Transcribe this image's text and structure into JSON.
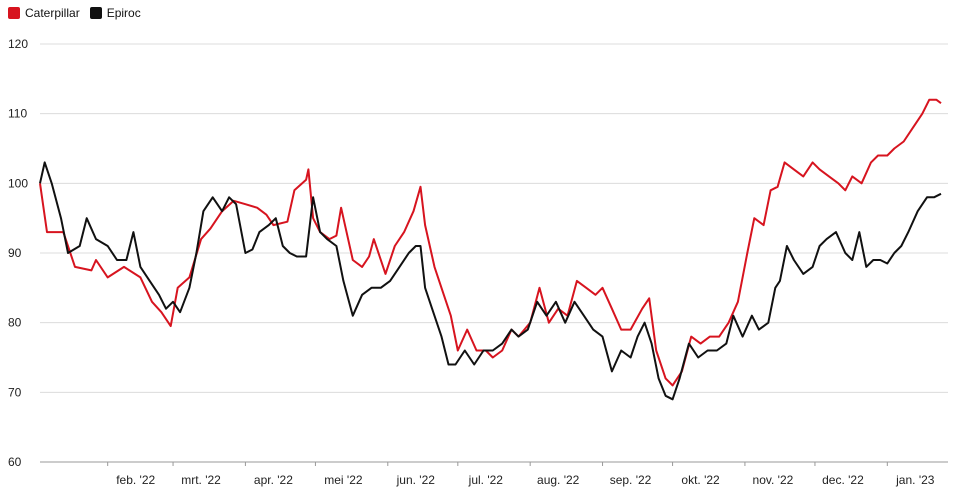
{
  "legend": {
    "items": [
      {
        "label": "Caterpillar",
        "color": "#d7141f"
      },
      {
        "label": "Epiroc",
        "color": "#111111"
      }
    ]
  },
  "chart_data": {
    "type": "line",
    "xlabel": "",
    "ylabel": "",
    "ylim": [
      60,
      120
    ],
    "yticks": [
      60,
      70,
      80,
      90,
      100,
      110,
      120
    ],
    "grid": true,
    "legend_position": "top-left",
    "x_ticks": [
      {
        "label": "feb. '22",
        "date": "2022-02-01"
      },
      {
        "label": "mrt. '22",
        "date": "2022-03-01"
      },
      {
        "label": "apr. '22",
        "date": "2022-04-01"
      },
      {
        "label": "mei '22",
        "date": "2022-05-01"
      },
      {
        "label": "jun. '22",
        "date": "2022-06-01"
      },
      {
        "label": "jul. '22",
        "date": "2022-07-01"
      },
      {
        "label": "aug. '22",
        "date": "2022-08-01"
      },
      {
        "label": "sep. '22",
        "date": "2022-09-01"
      },
      {
        "label": "okt. '22",
        "date": "2022-10-01"
      },
      {
        "label": "nov. '22",
        "date": "2022-11-01"
      },
      {
        "label": "dec. '22",
        "date": "2022-12-01"
      },
      {
        "label": "jan. '23",
        "date": "2023-01-01"
      }
    ],
    "xlim": [
      "2022-01-03",
      "2023-01-27"
    ],
    "series": [
      {
        "name": "Caterpillar",
        "color": "#d7141f",
        "points": [
          [
            "2022-01-03",
            100
          ],
          [
            "2022-01-06",
            93
          ],
          [
            "2022-01-13",
            93
          ],
          [
            "2022-01-18",
            88
          ],
          [
            "2022-01-25",
            87.5
          ],
          [
            "2022-01-27",
            89
          ],
          [
            "2022-02-01",
            86.5
          ],
          [
            "2022-02-08",
            88
          ],
          [
            "2022-02-15",
            86.5
          ],
          [
            "2022-02-20",
            83
          ],
          [
            "2022-02-24",
            81.5
          ],
          [
            "2022-02-28",
            79.5
          ],
          [
            "2022-03-03",
            85
          ],
          [
            "2022-03-08",
            86.5
          ],
          [
            "2022-03-13",
            92
          ],
          [
            "2022-03-17",
            93.5
          ],
          [
            "2022-03-22",
            96
          ],
          [
            "2022-03-27",
            97.5
          ],
          [
            "2022-04-01",
            97
          ],
          [
            "2022-04-06",
            96.5
          ],
          [
            "2022-04-10",
            95.5
          ],
          [
            "2022-04-13",
            94
          ],
          [
            "2022-04-19",
            94.5
          ],
          [
            "2022-04-22",
            99
          ],
          [
            "2022-04-27",
            100.5
          ],
          [
            "2022-04-28",
            102
          ],
          [
            "2022-04-30",
            95
          ],
          [
            "2022-05-03",
            93
          ],
          [
            "2022-05-07",
            92
          ],
          [
            "2022-05-10",
            92.5
          ],
          [
            "2022-05-12",
            96.5
          ],
          [
            "2022-05-17",
            89
          ],
          [
            "2022-05-21",
            88
          ],
          [
            "2022-05-24",
            89.5
          ],
          [
            "2022-05-26",
            92
          ],
          [
            "2022-05-31",
            87
          ],
          [
            "2022-06-04",
            91
          ],
          [
            "2022-06-08",
            93
          ],
          [
            "2022-06-12",
            96
          ],
          [
            "2022-06-15",
            99.5
          ],
          [
            "2022-06-17",
            94
          ],
          [
            "2022-06-21",
            88
          ],
          [
            "2022-06-25",
            84
          ],
          [
            "2022-06-28",
            81
          ],
          [
            "2022-07-01",
            76
          ],
          [
            "2022-07-05",
            79
          ],
          [
            "2022-07-09",
            76
          ],
          [
            "2022-07-13",
            76
          ],
          [
            "2022-07-16",
            75
          ],
          [
            "2022-07-20",
            76
          ],
          [
            "2022-07-24",
            79
          ],
          [
            "2022-07-27",
            78
          ],
          [
            "2022-08-01",
            80
          ],
          [
            "2022-08-05",
            85
          ],
          [
            "2022-08-09",
            80
          ],
          [
            "2022-08-13",
            82
          ],
          [
            "2022-08-17",
            81
          ],
          [
            "2022-08-21",
            86
          ],
          [
            "2022-08-25",
            85
          ],
          [
            "2022-08-29",
            84
          ],
          [
            "2022-09-01",
            85
          ],
          [
            "2022-09-05",
            82
          ],
          [
            "2022-09-09",
            79
          ],
          [
            "2022-09-13",
            79
          ],
          [
            "2022-09-18",
            82
          ],
          [
            "2022-09-21",
            83.5
          ],
          [
            "2022-09-24",
            76
          ],
          [
            "2022-09-28",
            72
          ],
          [
            "2022-10-01",
            71
          ],
          [
            "2022-10-05",
            73
          ],
          [
            "2022-10-09",
            78
          ],
          [
            "2022-10-13",
            77
          ],
          [
            "2022-10-17",
            78
          ],
          [
            "2022-10-21",
            78
          ],
          [
            "2022-10-25",
            80
          ],
          [
            "2022-10-29",
            83
          ],
          [
            "2022-11-02",
            90
          ],
          [
            "2022-11-05",
            95
          ],
          [
            "2022-11-09",
            94
          ],
          [
            "2022-11-12",
            99
          ],
          [
            "2022-11-15",
            99.5
          ],
          [
            "2022-11-18",
            103
          ],
          [
            "2022-11-22",
            102
          ],
          [
            "2022-11-26",
            101
          ],
          [
            "2022-11-30",
            103
          ],
          [
            "2022-12-03",
            102
          ],
          [
            "2022-12-07",
            101
          ],
          [
            "2022-12-11",
            100
          ],
          [
            "2022-12-14",
            99
          ],
          [
            "2022-12-17",
            101
          ],
          [
            "2022-12-21",
            100
          ],
          [
            "2022-12-25",
            103
          ],
          [
            "2022-12-28",
            104
          ],
          [
            "2023-01-01",
            104
          ],
          [
            "2023-01-04",
            105
          ],
          [
            "2023-01-08",
            106
          ],
          [
            "2023-01-12",
            108
          ],
          [
            "2023-01-16",
            110
          ],
          [
            "2023-01-19",
            112
          ],
          [
            "2023-01-22",
            112
          ],
          [
            "2023-01-24",
            111.5
          ]
        ]
      },
      {
        "name": "Epiroc",
        "color": "#111111",
        "points": [
          [
            "2022-01-03",
            100
          ],
          [
            "2022-01-05",
            103
          ],
          [
            "2022-01-08",
            100
          ],
          [
            "2022-01-12",
            95
          ],
          [
            "2022-01-15",
            90
          ],
          [
            "2022-01-20",
            91
          ],
          [
            "2022-01-23",
            95
          ],
          [
            "2022-01-27",
            92
          ],
          [
            "2022-02-01",
            91
          ],
          [
            "2022-02-05",
            89
          ],
          [
            "2022-02-09",
            89
          ],
          [
            "2022-02-12",
            93
          ],
          [
            "2022-02-15",
            88
          ],
          [
            "2022-02-19",
            86
          ],
          [
            "2022-02-23",
            84
          ],
          [
            "2022-02-26",
            82
          ],
          [
            "2022-03-01",
            83
          ],
          [
            "2022-03-04",
            81.5
          ],
          [
            "2022-03-08",
            85
          ],
          [
            "2022-03-11",
            90
          ],
          [
            "2022-03-14",
            96
          ],
          [
            "2022-03-18",
            98
          ],
          [
            "2022-03-22",
            96
          ],
          [
            "2022-03-25",
            98
          ],
          [
            "2022-03-28",
            97
          ],
          [
            "2022-04-01",
            90
          ],
          [
            "2022-04-04",
            90.5
          ],
          [
            "2022-04-07",
            93
          ],
          [
            "2022-04-11",
            94
          ],
          [
            "2022-04-14",
            95
          ],
          [
            "2022-04-17",
            91
          ],
          [
            "2022-04-20",
            90
          ],
          [
            "2022-04-23",
            89.5
          ],
          [
            "2022-04-27",
            89.5
          ],
          [
            "2022-04-30",
            98
          ],
          [
            "2022-05-03",
            93
          ],
          [
            "2022-05-06",
            92
          ],
          [
            "2022-05-10",
            91
          ],
          [
            "2022-05-13",
            86
          ],
          [
            "2022-05-17",
            81
          ],
          [
            "2022-05-21",
            84
          ],
          [
            "2022-05-25",
            85
          ],
          [
            "2022-05-29",
            85
          ],
          [
            "2022-06-02",
            86
          ],
          [
            "2022-06-06",
            88
          ],
          [
            "2022-06-10",
            90
          ],
          [
            "2022-06-13",
            91
          ],
          [
            "2022-06-15",
            91
          ],
          [
            "2022-06-17",
            85
          ],
          [
            "2022-06-20",
            82
          ],
          [
            "2022-06-24",
            78
          ],
          [
            "2022-06-27",
            74
          ],
          [
            "2022-06-30",
            74
          ],
          [
            "2022-07-04",
            76
          ],
          [
            "2022-07-08",
            74
          ],
          [
            "2022-07-12",
            76
          ],
          [
            "2022-07-16",
            76
          ],
          [
            "2022-07-20",
            77
          ],
          [
            "2022-07-24",
            79
          ],
          [
            "2022-07-27",
            78
          ],
          [
            "2022-07-31",
            79
          ],
          [
            "2022-08-04",
            83
          ],
          [
            "2022-08-08",
            81
          ],
          [
            "2022-08-12",
            83
          ],
          [
            "2022-08-16",
            80
          ],
          [
            "2022-08-20",
            83
          ],
          [
            "2022-08-24",
            81
          ],
          [
            "2022-08-28",
            79
          ],
          [
            "2022-09-01",
            78
          ],
          [
            "2022-09-05",
            73
          ],
          [
            "2022-09-09",
            76
          ],
          [
            "2022-09-13",
            75
          ],
          [
            "2022-09-16",
            78
          ],
          [
            "2022-09-19",
            80
          ],
          [
            "2022-09-22",
            77
          ],
          [
            "2022-09-25",
            72
          ],
          [
            "2022-09-28",
            69.5
          ],
          [
            "2022-10-01",
            69
          ],
          [
            "2022-10-04",
            72
          ],
          [
            "2022-10-08",
            77
          ],
          [
            "2022-10-12",
            75
          ],
          [
            "2022-10-16",
            76
          ],
          [
            "2022-10-20",
            76
          ],
          [
            "2022-10-24",
            77
          ],
          [
            "2022-10-27",
            81
          ],
          [
            "2022-10-31",
            78
          ],
          [
            "2022-11-04",
            81
          ],
          [
            "2022-11-07",
            79
          ],
          [
            "2022-11-11",
            80
          ],
          [
            "2022-11-14",
            85
          ],
          [
            "2022-11-16",
            86
          ],
          [
            "2022-11-19",
            91
          ],
          [
            "2022-11-22",
            89
          ],
          [
            "2022-11-26",
            87
          ],
          [
            "2022-11-30",
            88
          ],
          [
            "2022-12-03",
            91
          ],
          [
            "2022-12-06",
            92
          ],
          [
            "2022-12-10",
            93
          ],
          [
            "2022-12-14",
            90
          ],
          [
            "2022-12-17",
            89
          ],
          [
            "2022-12-20",
            93
          ],
          [
            "2022-12-23",
            88
          ],
          [
            "2022-12-26",
            89
          ],
          [
            "2022-12-29",
            89
          ],
          [
            "2023-01-01",
            88.5
          ],
          [
            "2023-01-04",
            90
          ],
          [
            "2023-01-07",
            91
          ],
          [
            "2023-01-10",
            93
          ],
          [
            "2023-01-14",
            96
          ],
          [
            "2023-01-18",
            98
          ],
          [
            "2023-01-21",
            98
          ],
          [
            "2023-01-24",
            98.5
          ]
        ]
      }
    ]
  }
}
